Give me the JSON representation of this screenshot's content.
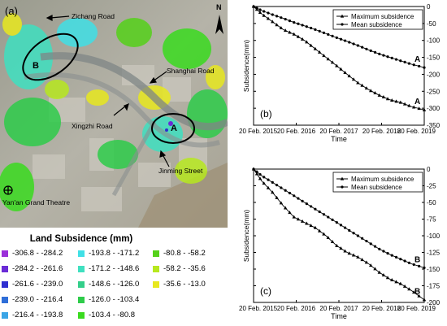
{
  "map": {
    "panel_label": "(a)",
    "north_label": "N",
    "labels": {
      "zichang": "Zichang Road",
      "shanghai": "Shanghai Road",
      "xingzhi": "Xingzhi Road",
      "yanan": "Yan'an Grand Theatre",
      "jinming": "Jinming Street",
      "area_a": "A",
      "area_b": "B"
    }
  },
  "legend": {
    "title": "Land Subsidence (mm)",
    "items": [
      {
        "label": "-306.8 - -284.2",
        "color": "#9b30d9"
      },
      {
        "label": "-284.2 - -261.6",
        "color": "#6a2bd6"
      },
      {
        "label": "-261.6 - -239.0",
        "color": "#2f2fd0"
      },
      {
        "label": "-239.0 - -216.4",
        "color": "#2f6ed8"
      },
      {
        "label": "-216.4 - -193.8",
        "color": "#3aa5e6"
      },
      {
        "label": "-193.8 - -171.2",
        "color": "#40e0e6"
      },
      {
        "label": "-171.2 - -148.6",
        "color": "#3fe0c0"
      },
      {
        "label": "-148.6 - -126.0",
        "color": "#33cf8a"
      },
      {
        "label": "-126.0 - -103.4",
        "color": "#2ecc4a"
      },
      {
        "label": "-103.4 - -80.8",
        "color": "#3adb1f"
      },
      {
        "label": "-80.8 - -58.2",
        "color": "#55d11a"
      },
      {
        "label": "-58.2 - -35.6",
        "color": "#b7e81f"
      },
      {
        "label": "-35.6 - -13.0",
        "color": "#e8e81f"
      }
    ]
  },
  "chart_data": [
    {
      "type": "line",
      "panel": "(b)",
      "xlabel": "Time",
      "ylabel": "Subsidence(mm)",
      "ylim": [
        -350,
        0
      ],
      "yticks": [
        0,
        -50,
        -100,
        -150,
        -200,
        -250,
        -300,
        -350
      ],
      "xticks": [
        "20 Feb. 2015",
        "20 Feb. 2016",
        "20 Feb. 2017",
        "20 Feb. 2018",
        "20 Feb. 2019"
      ],
      "xlim": [
        "2015-02-20",
        "2019-02-20"
      ],
      "legend_position": "top-right",
      "series": [
        {
          "name": "Maximum subsidence",
          "marker": "triangle",
          "end_label": "A",
          "points": [
            [
              "2015-02-20",
              0
            ],
            [
              "2015-05-01",
              -22
            ],
            [
              "2015-08-01",
              -45
            ],
            [
              "2015-11-01",
              -68
            ],
            [
              "2016-02-01",
              -82
            ],
            [
              "2016-05-01",
              -100
            ],
            [
              "2016-08-01",
              -125
            ],
            [
              "2016-11-01",
              -150
            ],
            [
              "2017-02-01",
              -175
            ],
            [
              "2017-05-01",
              -200
            ],
            [
              "2017-08-01",
              -225
            ],
            [
              "2017-11-01",
              -245
            ],
            [
              "2018-02-01",
              -262
            ],
            [
              "2018-05-01",
              -275
            ],
            [
              "2018-08-01",
              -283
            ],
            [
              "2018-11-01",
              -295
            ],
            [
              "2019-02-20",
              -305
            ]
          ]
        },
        {
          "name": "Mean subsidence",
          "marker": "circle",
          "end_label": "A",
          "points": [
            [
              "2015-02-20",
              0
            ],
            [
              "2015-05-01",
              -12
            ],
            [
              "2015-08-01",
              -24
            ],
            [
              "2015-11-01",
              -35
            ],
            [
              "2016-02-01",
              -47
            ],
            [
              "2016-05-01",
              -57
            ],
            [
              "2016-08-01",
              -68
            ],
            [
              "2016-11-01",
              -80
            ],
            [
              "2017-02-01",
              -92
            ],
            [
              "2017-05-01",
              -103
            ],
            [
              "2017-08-01",
              -115
            ],
            [
              "2017-11-01",
              -128
            ],
            [
              "2018-02-01",
              -140
            ],
            [
              "2018-05-01",
              -150
            ],
            [
              "2018-08-01",
              -160
            ],
            [
              "2018-11-01",
              -170
            ],
            [
              "2019-02-20",
              -180
            ]
          ]
        }
      ]
    },
    {
      "type": "line",
      "panel": "(c)",
      "xlabel": "Time",
      "ylabel": "Subsidence(mm)",
      "ylim": [
        -200,
        0
      ],
      "yticks": [
        0,
        -25,
        -50,
        -75,
        -100,
        -125,
        -150,
        -175,
        -200
      ],
      "xticks": [
        "20 Feb. 2015",
        "20 Feb. 2016",
        "20 Feb. 2017",
        "20 Feb. 2018",
        "20 Feb. 2019"
      ],
      "xlim": [
        "2015-02-20",
        "2019-02-20"
      ],
      "legend_position": "top-right",
      "series": [
        {
          "name": "Maximum subsidence",
          "marker": "triangle",
          "end_label": "B",
          "points": [
            [
              "2015-02-20",
              0
            ],
            [
              "2015-05-01",
              -18
            ],
            [
              "2015-08-01",
              -35
            ],
            [
              "2015-11-01",
              -55
            ],
            [
              "2016-02-01",
              -72
            ],
            [
              "2016-05-01",
              -80
            ],
            [
              "2016-08-01",
              -88
            ],
            [
              "2016-11-01",
              -100
            ],
            [
              "2017-02-01",
              -115
            ],
            [
              "2017-05-01",
              -125
            ],
            [
              "2017-08-01",
              -132
            ],
            [
              "2017-11-01",
              -142
            ],
            [
              "2018-02-01",
              -155
            ],
            [
              "2018-05-01",
              -165
            ],
            [
              "2018-08-01",
              -172
            ],
            [
              "2018-11-01",
              -182
            ],
            [
              "2019-02-20",
              -196
            ]
          ]
        },
        {
          "name": "Mean subsidence",
          "marker": "circle",
          "end_label": "B",
          "points": [
            [
              "2015-02-20",
              0
            ],
            [
              "2015-05-01",
              -10
            ],
            [
              "2015-08-01",
              -20
            ],
            [
              "2015-11-01",
              -30
            ],
            [
              "2016-02-01",
              -40
            ],
            [
              "2016-05-01",
              -50
            ],
            [
              "2016-08-01",
              -60
            ],
            [
              "2016-11-01",
              -70
            ],
            [
              "2017-02-01",
              -80
            ],
            [
              "2017-05-01",
              -90
            ],
            [
              "2017-08-01",
              -100
            ],
            [
              "2017-11-01",
              -110
            ],
            [
              "2018-02-01",
              -120
            ],
            [
              "2018-05-01",
              -128
            ],
            [
              "2018-08-01",
              -135
            ],
            [
              "2018-11-01",
              -142
            ],
            [
              "2019-02-20",
              -148
            ]
          ]
        }
      ]
    }
  ]
}
